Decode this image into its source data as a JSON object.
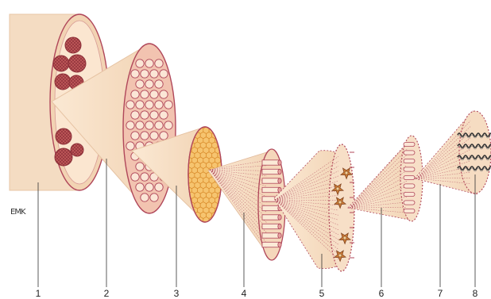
{
  "signature": "EMK",
  "labels": [
    "1",
    "2",
    "3",
    "4",
    "5",
    "6",
    "7",
    "8"
  ],
  "colors": {
    "tissue_fill": "#f6dfc6",
    "tissue_light": "#fbead7",
    "outline": "#b0475a",
    "bundle_fill": "#c96a62",
    "bundle_dark": "#9c3f44",
    "honeycomb": "#f2b45a",
    "nucleus": "#c97a35"
  }
}
